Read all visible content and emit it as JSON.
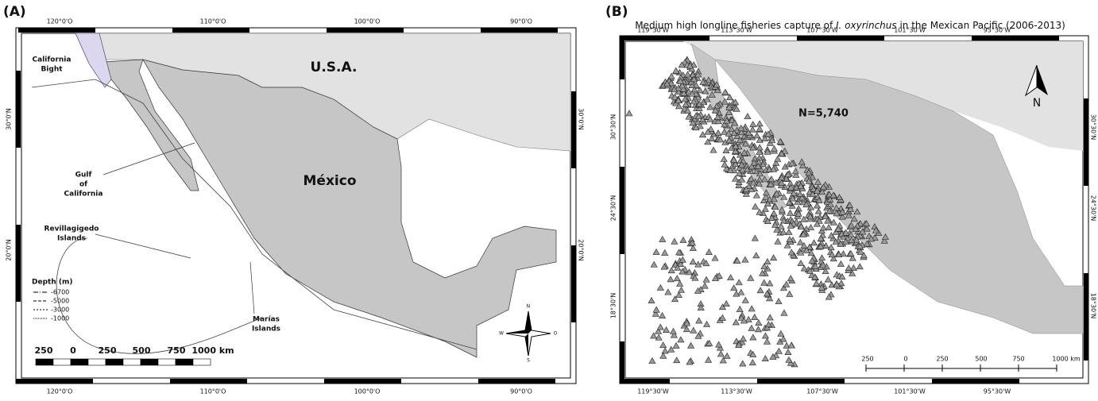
{
  "panel_a": {
    "label": "(A)",
    "lon_ticks": [
      "120°0'O",
      "110°0'O",
      "100°0'O",
      "90°0'O"
    ],
    "lat_ticks": [
      "30°0'N",
      "20°0'N"
    ],
    "places": {
      "california_bight": [
        "California",
        "Bight"
      ],
      "usa": "U.S.A.",
      "gulf": [
        "Gulf",
        "of",
        "California"
      ],
      "mexico": "México",
      "revillagigedo": [
        "Revillagigedo",
        "Islands"
      ],
      "marias": [
        "Marías",
        "Islands"
      ]
    },
    "depth_legend": {
      "title": "Depth (m)",
      "items": [
        "-6700",
        "-5000",
        "-3000",
        "-1000"
      ]
    },
    "scale": [
      "250",
      "0",
      "250",
      "500",
      "750",
      "1000 km"
    ],
    "compass": [
      "N",
      "W",
      "O",
      "S"
    ]
  },
  "panel_b": {
    "label": "(B)",
    "title": {
      "before": "Medium high longline fisheries capture of ",
      "species": "I. oxyrinchus",
      "after": " in the Mexican Pacific (2006-2013)"
    },
    "lon_ticks": [
      "119°30'W",
      "113°30'W",
      "107°30'W",
      "101°30'W",
      "95°30'W"
    ],
    "lat_ticks": [
      "30°30'N",
      "24°30'N",
      "18°30'N"
    ],
    "n_label": "N=5,740",
    "north": "N",
    "scale": [
      "250",
      "0",
      "250",
      "500",
      "750",
      "1000 km"
    ]
  }
}
